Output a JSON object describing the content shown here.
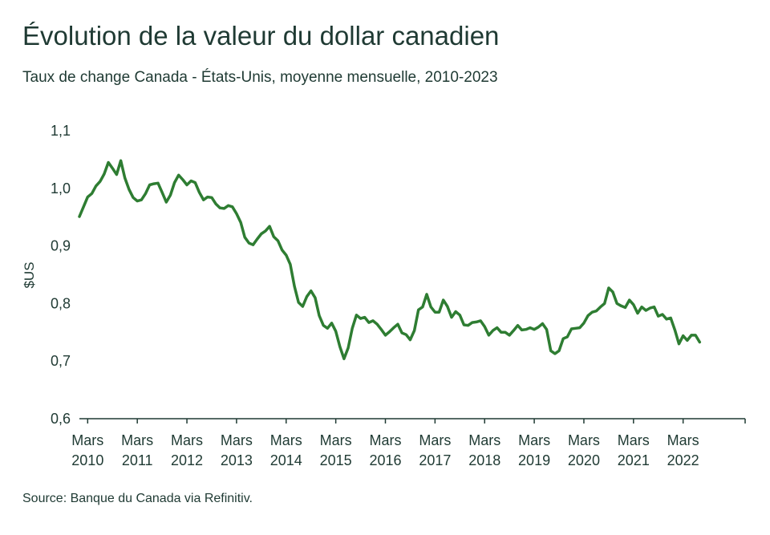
{
  "header": {
    "title": "Évolution de la valeur du dollar canadien",
    "subtitle": "Taux de change Canada - États-Unis, moyenne mensuelle, 2010-2023"
  },
  "footer": {
    "source": "Source: Banque du Canada via Refinitiv."
  },
  "colors": {
    "line": "#2e7d32",
    "axis": "#1f3a33",
    "text": "#1f3a33"
  },
  "chart_data": {
    "type": "line",
    "title": "Évolution de la valeur du dollar canadien",
    "subtitle": "Taux de change Canada - États-Unis, moyenne mensuelle, 2010-2023",
    "xlabel": "",
    "ylabel": "$US",
    "ylim": [
      0.6,
      1.1
    ],
    "y_ticks": [
      0.6,
      0.7,
      0.8,
      0.9,
      1.0,
      1.1
    ],
    "y_tick_labels": [
      "0,6",
      "0,7",
      "0,8",
      "0,9",
      "1,0",
      "1,1"
    ],
    "x_range": [
      "2010-01",
      "2023-06"
    ],
    "x_ticks": [
      {
        "x": "2010-03",
        "line1": "Mars",
        "line2": "2010"
      },
      {
        "x": "2011-03",
        "line1": "Mars",
        "line2": "2011"
      },
      {
        "x": "2012-03",
        "line1": "Mars",
        "line2": "2012"
      },
      {
        "x": "2013-03",
        "line1": "Mars",
        "line2": "2013"
      },
      {
        "x": "2014-03",
        "line1": "Mars",
        "line2": "2014"
      },
      {
        "x": "2015-03",
        "line1": "Mars",
        "line2": "2015"
      },
      {
        "x": "2016-03",
        "line1": "Mars",
        "line2": "2016"
      },
      {
        "x": "2017-03",
        "line1": "Mars",
        "line2": "2017"
      },
      {
        "x": "2018-03",
        "line1": "Mars",
        "line2": "2018"
      },
      {
        "x": "2019-03",
        "line1": "Mars",
        "line2": "2019"
      },
      {
        "x": "2020-03",
        "line1": "Mars",
        "line2": "2020"
      },
      {
        "x": "2021-03",
        "line1": "Mars",
        "line2": "2021"
      },
      {
        "x": "2022-03",
        "line1": "Mars",
        "line2": "2022"
      }
    ],
    "grid": false,
    "series": [
      {
        "color": "#2e7d32",
        "points": [
          [
            "2010-01",
            0.951
          ],
          [
            "2010-03",
            0.985
          ],
          [
            "2010-04",
            0.991
          ],
          [
            "2010-05",
            1.004
          ],
          [
            "2010-06",
            1.012
          ],
          [
            "2010-07",
            1.025
          ],
          [
            "2010-08",
            1.045
          ],
          [
            "2010-09",
            1.035
          ],
          [
            "2010-10",
            1.024
          ],
          [
            "2010-11",
            1.048
          ],
          [
            "2010-12",
            1.018
          ],
          [
            "2011-01",
            0.998
          ],
          [
            "2011-02",
            0.984
          ],
          [
            "2011-03",
            0.978
          ],
          [
            "2011-04",
            0.98
          ],
          [
            "2011-05",
            0.991
          ],
          [
            "2011-06",
            1.006
          ],
          [
            "2011-07",
            1.008
          ],
          [
            "2011-08",
            1.009
          ],
          [
            "2011-09",
            0.993
          ],
          [
            "2011-10",
            0.976
          ],
          [
            "2011-11",
            0.988
          ],
          [
            "2011-12",
            1.01
          ],
          [
            "2012-01",
            1.023
          ],
          [
            "2012-02",
            1.015
          ],
          [
            "2012-03",
            1.006
          ],
          [
            "2012-04",
            1.013
          ],
          [
            "2012-05",
            1.01
          ],
          [
            "2012-06",
            0.993
          ],
          [
            "2012-07",
            0.98
          ],
          [
            "2012-08",
            0.985
          ],
          [
            "2012-09",
            0.984
          ],
          [
            "2012-10",
            0.973
          ],
          [
            "2012-11",
            0.966
          ],
          [
            "2012-12",
            0.965
          ],
          [
            "2013-01",
            0.97
          ],
          [
            "2013-02",
            0.968
          ],
          [
            "2013-03",
            0.956
          ],
          [
            "2013-04",
            0.941
          ],
          [
            "2013-05",
            0.915
          ],
          [
            "2013-06",
            0.905
          ],
          [
            "2013-07",
            0.902
          ],
          [
            "2013-08",
            0.912
          ],
          [
            "2013-09",
            0.921
          ],
          [
            "2013-10",
            0.926
          ],
          [
            "2013-11",
            0.934
          ],
          [
            "2013-12",
            0.916
          ],
          [
            "2014-01",
            0.909
          ],
          [
            "2014-02",
            0.893
          ],
          [
            "2014-03",
            0.884
          ],
          [
            "2014-04",
            0.868
          ],
          [
            "2014-05",
            0.83
          ],
          [
            "2014-06",
            0.802
          ],
          [
            "2014-07",
            0.795
          ],
          [
            "2014-08",
            0.812
          ],
          [
            "2014-09",
            0.822
          ],
          [
            "2014-10",
            0.81
          ],
          [
            "2014-11",
            0.779
          ],
          [
            "2014-12",
            0.762
          ],
          [
            "2015-01",
            0.757
          ],
          [
            "2015-02",
            0.766
          ],
          [
            "2015-03",
            0.752
          ],
          [
            "2015-04",
            0.725
          ],
          [
            "2015-05",
            0.704
          ],
          [
            "2015-06",
            0.723
          ],
          [
            "2015-07",
            0.757
          ],
          [
            "2015-08",
            0.78
          ],
          [
            "2015-09",
            0.774
          ],
          [
            "2015-10",
            0.776
          ],
          [
            "2015-11",
            0.767
          ],
          [
            "2015-12",
            0.77
          ],
          [
            "2016-01",
            0.764
          ],
          [
            "2016-02",
            0.755
          ],
          [
            "2016-03",
            0.745
          ],
          [
            "2016-04",
            0.751
          ],
          [
            "2016-05",
            0.758
          ],
          [
            "2016-06",
            0.764
          ],
          [
            "2016-07",
            0.749
          ],
          [
            "2016-08",
            0.746
          ],
          [
            "2016-09",
            0.737
          ],
          [
            "2016-10",
            0.753
          ],
          [
            "2016-11",
            0.789
          ],
          [
            "2016-12",
            0.794
          ],
          [
            "2017-01",
            0.816
          ],
          [
            "2017-02",
            0.794
          ],
          [
            "2017-03",
            0.785
          ],
          [
            "2017-04",
            0.785
          ],
          [
            "2017-05",
            0.806
          ],
          [
            "2017-06",
            0.795
          ],
          [
            "2017-07",
            0.776
          ],
          [
            "2017-08",
            0.786
          ],
          [
            "2017-09",
            0.78
          ],
          [
            "2017-10",
            0.763
          ],
          [
            "2017-11",
            0.762
          ],
          [
            "2017-12",
            0.767
          ],
          [
            "2018-01",
            0.768
          ],
          [
            "2018-02",
            0.77
          ],
          [
            "2018-03",
            0.76
          ],
          [
            "2018-04",
            0.745
          ],
          [
            "2018-05",
            0.753
          ],
          [
            "2018-06",
            0.758
          ],
          [
            "2018-07",
            0.75
          ],
          [
            "2018-08",
            0.75
          ],
          [
            "2018-09",
            0.745
          ],
          [
            "2018-10",
            0.753
          ],
          [
            "2018-11",
            0.762
          ],
          [
            "2018-12",
            0.754
          ],
          [
            "2019-01",
            0.755
          ],
          [
            "2019-02",
            0.758
          ],
          [
            "2019-03",
            0.755
          ],
          [
            "2019-04",
            0.759
          ],
          [
            "2019-05",
            0.765
          ],
          [
            "2019-06",
            0.755
          ],
          [
            "2019-07",
            0.718
          ],
          [
            "2019-08",
            0.713
          ],
          [
            "2019-09",
            0.718
          ],
          [
            "2019-10",
            0.739
          ],
          [
            "2019-11",
            0.742
          ],
          [
            "2019-12",
            0.756
          ],
          [
            "2020-01",
            0.757
          ],
          [
            "2020-02",
            0.758
          ],
          [
            "2020-03",
            0.766
          ],
          [
            "2020-04",
            0.779
          ],
          [
            "2020-05",
            0.785
          ],
          [
            "2020-06",
            0.787
          ],
          [
            "2020-07",
            0.794
          ],
          [
            "2020-08",
            0.8
          ],
          [
            "2020-09",
            0.827
          ],
          [
            "2020-10",
            0.82
          ],
          [
            "2020-11",
            0.8
          ],
          [
            "2020-12",
            0.796
          ],
          [
            "2021-01",
            0.793
          ],
          [
            "2021-02",
            0.806
          ],
          [
            "2021-03",
            0.798
          ],
          [
            "2021-04",
            0.783
          ],
          [
            "2021-05",
            0.794
          ],
          [
            "2021-06",
            0.788
          ],
          [
            "2021-07",
            0.792
          ],
          [
            "2021-08",
            0.794
          ],
          [
            "2021-09",
            0.778
          ],
          [
            "2021-10",
            0.781
          ],
          [
            "2021-11",
            0.773
          ],
          [
            "2021-12",
            0.775
          ],
          [
            "2022-01",
            0.754
          ],
          [
            "2022-02",
            0.73
          ],
          [
            "2022-03",
            0.744
          ],
          [
            "2022-04",
            0.736
          ],
          [
            "2022-05",
            0.745
          ],
          [
            "2022-06",
            0.745
          ],
          [
            "2022-07",
            0.733
          ]
        ]
      }
    ]
  }
}
